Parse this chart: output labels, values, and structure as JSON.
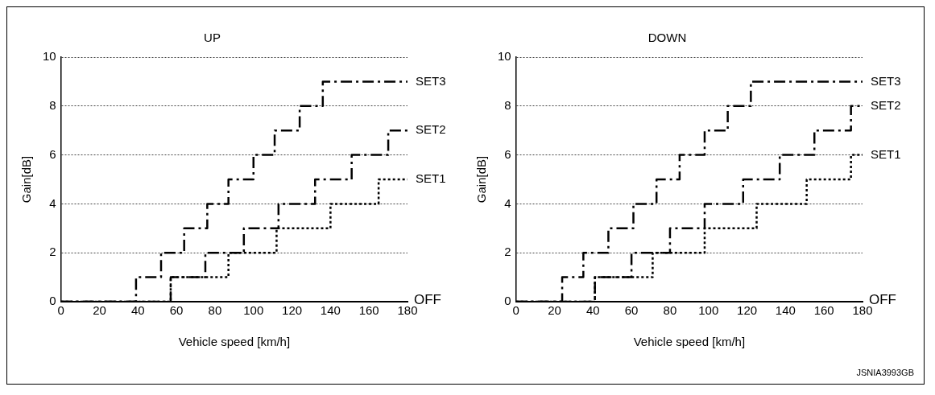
{
  "chart_data": [
    {
      "type": "step",
      "title": "UP",
      "xlabel": "Vehicle speed [km/h]",
      "ylabel": "Gain[dB]",
      "xlim": [
        0,
        180
      ],
      "xticks": [
        0,
        20,
        40,
        60,
        80,
        100,
        120,
        140,
        160,
        180
      ],
      "ylim": [
        0,
        10
      ],
      "yticks": [
        0,
        2,
        4,
        6,
        8,
        10
      ],
      "grid": "y",
      "legend": false,
      "annotations": [
        "OFF"
      ],
      "series": [
        {
          "name": "SET1",
          "color": "#000000",
          "line_style": "dotted",
          "x": [
            0,
            57,
            87,
            112,
            140,
            165,
            180
          ],
          "values": [
            0,
            1,
            2,
            3,
            4,
            5,
            5
          ]
        },
        {
          "name": "SET2",
          "color": "#000000",
          "line_style": "dashed",
          "x": [
            0,
            57,
            75,
            95,
            113,
            132,
            151,
            170,
            180
          ],
          "values": [
            0,
            1,
            2,
            3,
            4,
            5,
            6,
            7,
            7
          ]
        },
        {
          "name": "SET3",
          "color": "#000000",
          "line_style": "dashed",
          "x": [
            0,
            39,
            52,
            64,
            76,
            87,
            100,
            111,
            124,
            136,
            180
          ],
          "values": [
            0,
            1,
            2,
            3,
            4,
            5,
            6,
            7,
            8,
            9,
            9
          ]
        }
      ]
    },
    {
      "type": "step",
      "title": "DOWN",
      "xlabel": "Vehicle speed [km/h]",
      "ylabel": "Gain[dB]",
      "xlim": [
        0,
        180
      ],
      "xticks": [
        0,
        20,
        40,
        60,
        80,
        100,
        120,
        140,
        160,
        180
      ],
      "ylim": [
        0,
        10
      ],
      "yticks": [
        0,
        2,
        4,
        6,
        8,
        10
      ],
      "grid": "y",
      "legend": false,
      "annotations": [
        "OFF",
        "JSNIA3993GB"
      ],
      "series": [
        {
          "name": "SET1",
          "color": "#000000",
          "line_style": "dotted",
          "x": [
            0,
            41,
            71,
            98,
            125,
            151,
            174,
            180
          ],
          "values": [
            0,
            1,
            2,
            3,
            4,
            5,
            6,
            6
          ]
        },
        {
          "name": "SET2",
          "color": "#000000",
          "line_style": "dashed",
          "x": [
            0,
            41,
            60,
            80,
            98,
            118,
            137,
            155,
            174,
            180
          ],
          "values": [
            0,
            1,
            2,
            3,
            4,
            5,
            6,
            7,
            8,
            8
          ]
        },
        {
          "name": "SET3",
          "color": "#000000",
          "line_style": "dashed",
          "x": [
            0,
            24,
            35,
            48,
            61,
            73,
            85,
            98,
            110,
            122,
            180
          ],
          "values": [
            0,
            1,
            2,
            3,
            4,
            5,
            6,
            7,
            8,
            9,
            9
          ]
        }
      ]
    }
  ]
}
